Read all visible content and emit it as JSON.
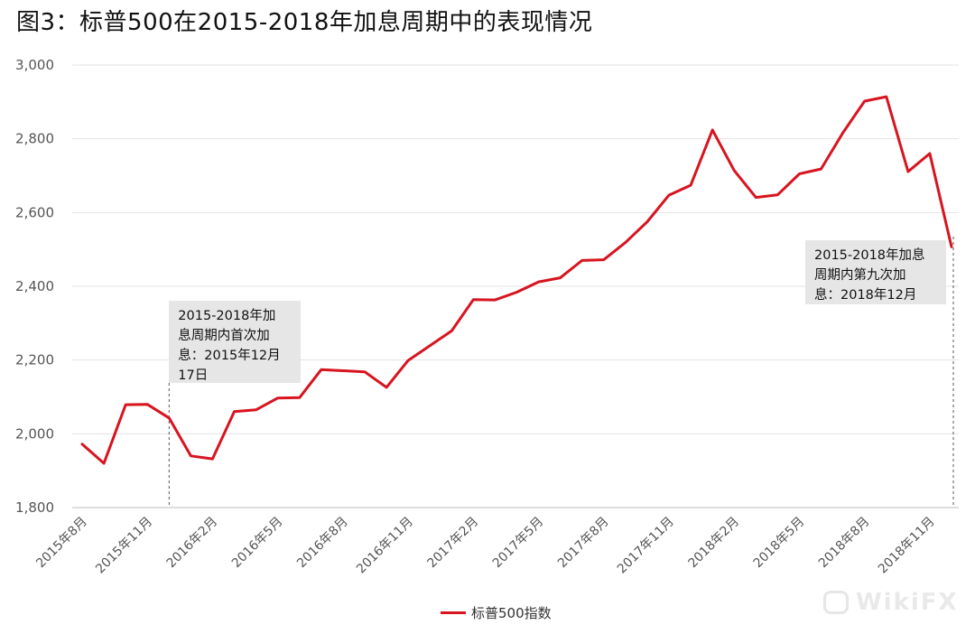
{
  "title": "图3：标普500在2015-2018年加息周期中的表现情况",
  "colors": {
    "line": "#d7141f",
    "grid": "#e3e3e3",
    "annotation_bg": "#e6e6e6",
    "dashed": "#555555"
  },
  "chart_data": {
    "type": "line",
    "title": "图3：标普500在2015-2018年加息周期中的表现情况",
    "xlabel": "",
    "ylabel": "",
    "ylim": [
      1800,
      3000
    ],
    "yticks": [
      1800,
      2000,
      2200,
      2400,
      2600,
      2800,
      3000
    ],
    "ytick_labels": [
      "1,800",
      "2,000",
      "2,200",
      "2,400",
      "2,600",
      "2,800",
      "3,000"
    ],
    "grid": true,
    "legend_position": "bottom-center",
    "x": [
      "2015年8月",
      "2015年9月",
      "2015年10月",
      "2015年11月",
      "2015年12月",
      "2016年1月",
      "2016年2月",
      "2016年3月",
      "2016年4月",
      "2016年5月",
      "2016年6月",
      "2016年7月",
      "2016年8月",
      "2016年9月",
      "2016年10月",
      "2016年11月",
      "2016年12月",
      "2017年1月",
      "2017年2月",
      "2017年3月",
      "2017年4月",
      "2017年5月",
      "2017年6月",
      "2017年7月",
      "2017年8月",
      "2017年9月",
      "2017年10月",
      "2017年11月",
      "2017年12月",
      "2018年1月",
      "2018年2月",
      "2018年3月",
      "2018年4月",
      "2018年5月",
      "2018年6月",
      "2018年7月",
      "2018年8月",
      "2018年9月",
      "2018年10月",
      "2018年11月",
      "2018年12月"
    ],
    "xtick_labels": [
      "2015年8月",
      "2015年11月",
      "2016年2月",
      "2016年5月",
      "2016年8月",
      "2016年11月",
      "2017年2月",
      "2017年5月",
      "2017年8月",
      "2017年11月",
      "2018年2月",
      "2018年5月",
      "2018年8月",
      "2018年11月"
    ],
    "series": [
      {
        "name": "标普500指数",
        "values": [
          1972,
          1920,
          2079,
          2080,
          2043,
          1940,
          1932,
          2060,
          2065,
          2097,
          2098,
          2174,
          2171,
          2168,
          2126,
          2199,
          2239,
          2279,
          2364,
          2363,
          2384,
          2412,
          2423,
          2470,
          2472,
          2519,
          2575,
          2647,
          2674,
          2824,
          2714,
          2641,
          2648,
          2705,
          2718,
          2816,
          2902,
          2914,
          2711,
          2760,
          2507
        ]
      }
    ],
    "annotations": [
      {
        "text": "2015-2018年加\n息周期内首次加\n息：2015年12月\n17日",
        "x": "2015年12月"
      },
      {
        "text": "2015-2018年加息\n周期内第九次加\n息：2018年12月",
        "x": "2018年12月"
      }
    ]
  },
  "legend": {
    "label": "标普500指数"
  },
  "watermark": {
    "text": "WikiFX"
  }
}
